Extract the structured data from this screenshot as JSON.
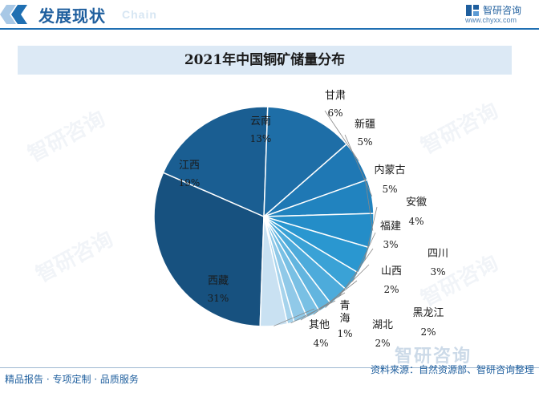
{
  "header": {
    "title": "发展现状",
    "subtitle": "Chain"
  },
  "brand": {
    "name": "智研咨询",
    "url": "www.chyxx.com",
    "watermark": "智研咨询"
  },
  "footer": {
    "left": "精品报告 · 专项定制 · 品质服务",
    "source": "资料来源：自然资源部、智研咨询整理"
  },
  "colors": {
    "accent": "#1f6fb2",
    "title_bg": "#dce9f5"
  },
  "chart_data": {
    "type": "pie",
    "title": "2021年中国铜矿储量分布",
    "slices": [
      {
        "name": "西藏",
        "value": 31,
        "label": "31%",
        "color": "#17517f"
      },
      {
        "name": "江西",
        "value": 19,
        "label": "19%",
        "color": "#1a5e92"
      },
      {
        "name": "云南",
        "value": 13,
        "label": "13%",
        "color": "#1e6ea7"
      },
      {
        "name": "甘肃",
        "value": 6,
        "label": "6%",
        "color": "#1f78b4"
      },
      {
        "name": "新疆",
        "value": 5,
        "label": "5%",
        "color": "#2183bf"
      },
      {
        "name": "内蒙古",
        "value": 5,
        "label": "5%",
        "color": "#248dc8"
      },
      {
        "name": "安徽",
        "value": 4,
        "label": "4%",
        "color": "#2a97d0"
      },
      {
        "name": "福建",
        "value": 3,
        "label": "3%",
        "color": "#3aa2d6"
      },
      {
        "name": "四川",
        "value": 3,
        "label": "3%",
        "color": "#4dabdb"
      },
      {
        "name": "山西",
        "value": 2,
        "label": "2%",
        "color": "#62b5df"
      },
      {
        "name": "黑龙江",
        "value": 2,
        "label": "2%",
        "color": "#79c0e4"
      },
      {
        "name": "湖北",
        "value": 2,
        "label": "2%",
        "color": "#90c9e8"
      },
      {
        "name": "青海",
        "value": 1,
        "label": "1%",
        "color": "#a6d3ec"
      },
      {
        "name": "其他",
        "value": 4,
        "label": "4%",
        "color": "#c9e1f2"
      }
    ]
  }
}
